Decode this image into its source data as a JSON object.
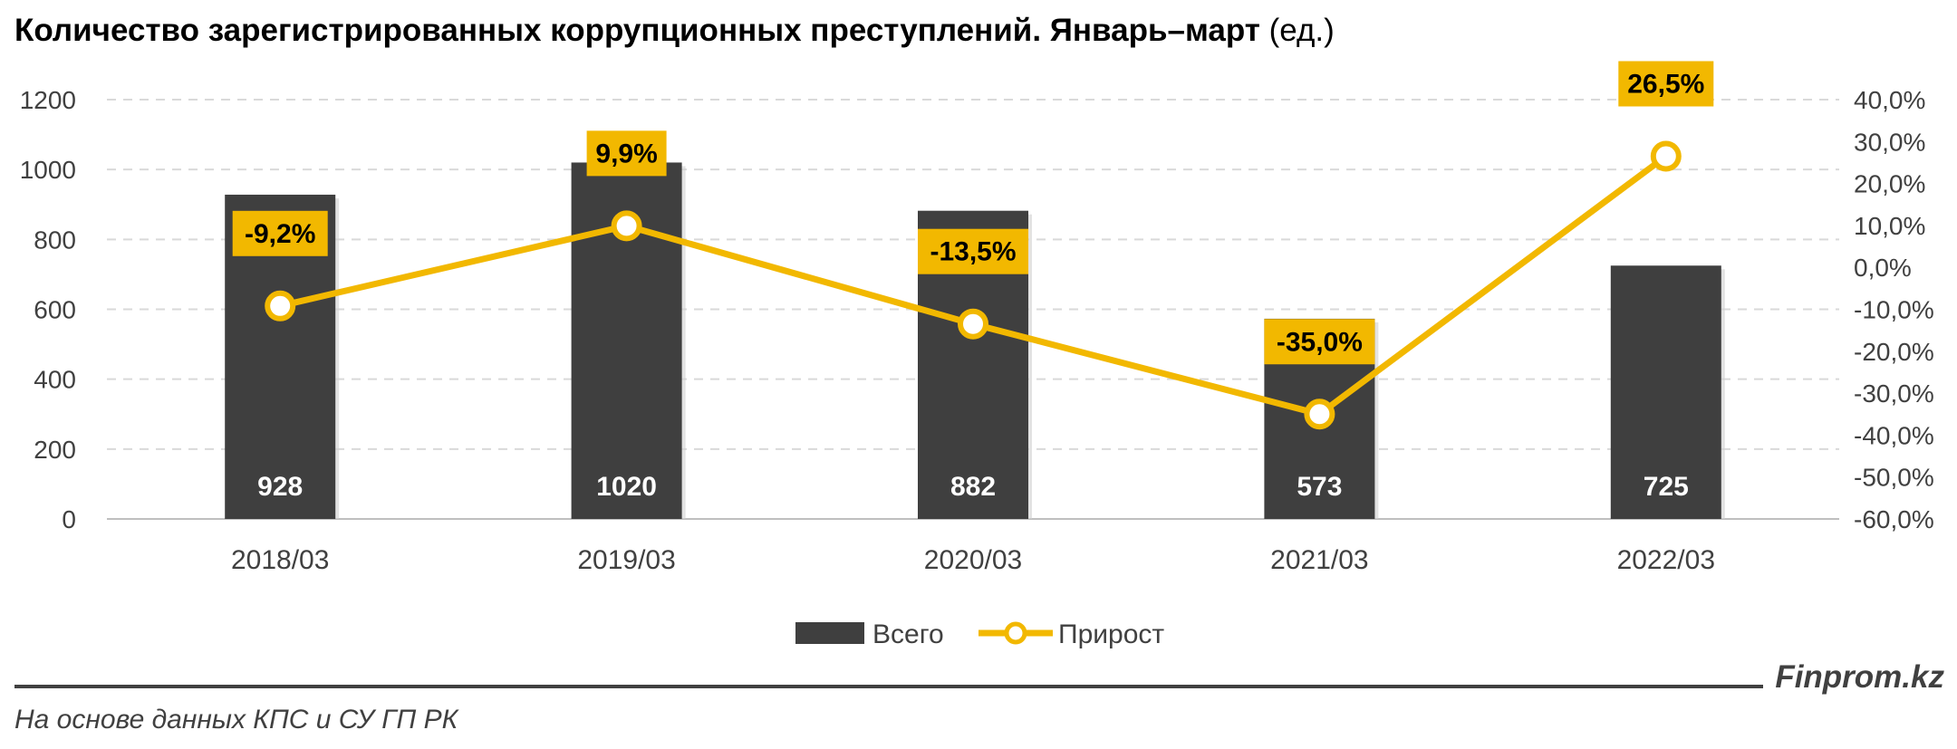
{
  "title": {
    "main": "Количество зарегистрированных коррупционных преступлений. Январь–март",
    "unit": " (ед.)"
  },
  "chart_data": {
    "type": "bar+line",
    "categories": [
      "2018/03",
      "2019/03",
      "2020/03",
      "2021/03",
      "2022/03"
    ],
    "series": [
      {
        "name": "Всего",
        "type": "bar",
        "axis": "left",
        "values": [
          928,
          1020,
          882,
          573,
          725
        ],
        "labels": [
          "928",
          "1020",
          "882",
          "573",
          "725"
        ]
      },
      {
        "name": "Прирост",
        "type": "line",
        "axis": "right",
        "values": [
          -9.2,
          9.9,
          -13.5,
          -35.0,
          26.5
        ],
        "labels": [
          "-9,2%",
          "9,9%",
          "-13,5%",
          "-35,0%",
          "26,5%"
        ]
      }
    ],
    "y_left": {
      "range": [
        0,
        1200
      ],
      "ticks": [
        "0",
        "200",
        "400",
        "600",
        "800",
        "1000",
        "1200"
      ]
    },
    "y_right": {
      "range": [
        -60,
        40
      ],
      "ticks": [
        "-60,0%",
        "-50,0%",
        "-40,0%",
        "-30,0%",
        "-20,0%",
        "-10,0%",
        "0,0%",
        "10,0%",
        "20,0%",
        "30,0%",
        "40,0%"
      ]
    },
    "grid": true,
    "legend_position": "bottom",
    "colors": {
      "bar": "#3f3f3f",
      "line": "#f2b800",
      "label_bg": "#f2b800",
      "grid": "#d9d9d9"
    }
  },
  "footer": {
    "brand": "Finprom.kz",
    "source": "На основе данных КПС и СУ ГП РК"
  }
}
